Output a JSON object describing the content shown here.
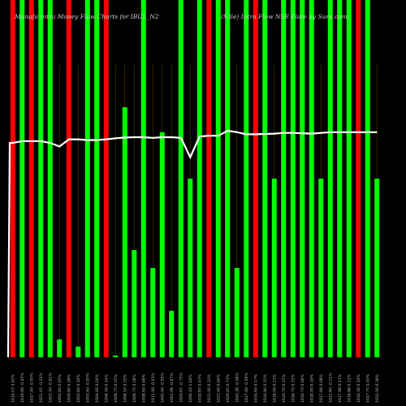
{
  "chart_data": {
    "type": "bar",
    "title": "Munafa Intra Money Flow Charts for IBUL_N2",
    "subtitle": "(S.6e) Intra Flow NSE Plate by Sure.com",
    "up_color": "#00ff00",
    "down_color": "#ff0000",
    "line_color": "#ffffff",
    "ylim": [
      0,
      100
    ],
    "categories": [
      "1016.03 3.91%",
      "1019.00 -0.45%",
      "1017.40 -0.05%",
      "1021.45 -0.32%",
      "1003.20 -0.61%",
      "1002.60 0.03%",
      "1009.80 0.28%",
      "1003.80 0.16%",
      "1003.60 -0.05%",
      "1004.60 0.24%",
      "1008.20 0.24%",
      "1009.75 0.55%",
      "1008.10 0.25%",
      "1009.75 0.38%",
      "1008.60 0.48%",
      "1011.00 -0.03%",
      "1005.00 -0.50%",
      "1001.08 -0.67%",
      "1009.85 -0.75%",
      "1006.40 1.46%",
      "1019.85 0.43%",
      "1021.00 0.33%",
      "1023.40 0.66%",
      "1029.95 0.73%",
      "1040.38 -0.08%",
      "1017.60 -0.50%",
      "1016.60 0.17%",
      "1016.90 0.15%",
      "1018.00 0.21%",
      "1019.70 0.15%",
      "1018.75 0.15%",
      "1016.70 0.06%",
      "1018.00 0.19%",
      "1017.88 0.08%",
      "1015.80 -0.11%",
      "1017.98 0.11%",
      "1018.88 0.12%",
      "1016.30 0.19%",
      "1017.75 0.03%",
      "1022.00 0.38%"
    ],
    "values": [
      100,
      100,
      100,
      100,
      100,
      5,
      100,
      3,
      100,
      100,
      100,
      0.5,
      70,
      30,
      100,
      25,
      63,
      13,
      100,
      50,
      100,
      100,
      100,
      100,
      25,
      100,
      100,
      100,
      50,
      100,
      100,
      100,
      100,
      50,
      100,
      100,
      100,
      100,
      100,
      50
    ],
    "directions": [
      "down",
      "up",
      "down",
      "up",
      "up",
      "up",
      "down",
      "up",
      "up",
      "up",
      "down",
      "up",
      "up",
      "up",
      "up",
      "up",
      "up",
      "up",
      "up",
      "up",
      "up",
      "down",
      "up",
      "up",
      "up",
      "up",
      "down",
      "up",
      "up",
      "up",
      "up",
      "up",
      "up",
      "up",
      "up",
      "up",
      "up",
      "down",
      "up",
      "up"
    ],
    "line_values": [
      60,
      60.5,
      60.5,
      60.5,
      60,
      59,
      61,
      61,
      60.8,
      60.8,
      61,
      61.3,
      61.5,
      61.6,
      61.6,
      61.4,
      61.6,
      61.6,
      61.4,
      56,
      61.8,
      62,
      62,
      63.4,
      63,
      62.4,
      62.4,
      62.5,
      62.6,
      62.8,
      62.8,
      62.7,
      62.6,
      62.8,
      63,
      63,
      63,
      63,
      63,
      63
    ]
  }
}
